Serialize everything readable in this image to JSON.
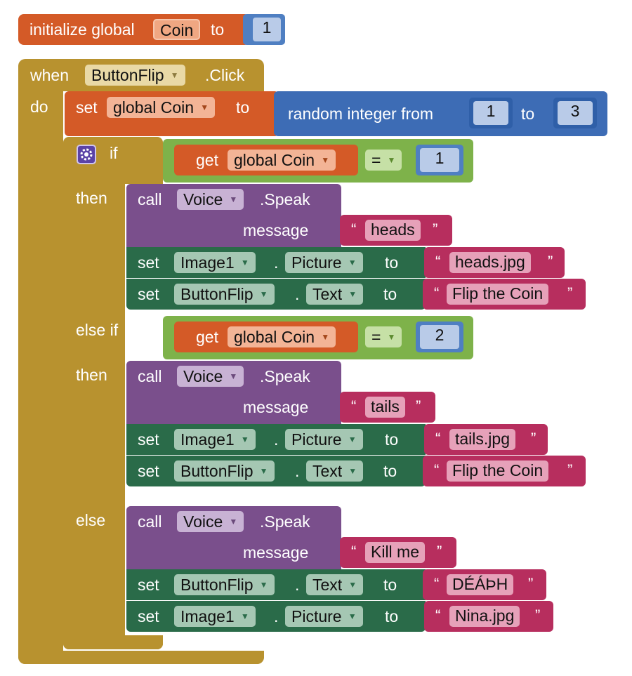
{
  "colors": {
    "init": "#d45a27",
    "event": "#b8922f",
    "set_var": "#d45a27",
    "math": "#3d6cb5",
    "control": "#7eb24a",
    "procedure": "#7a4f8c",
    "component_set": "#2a6b49",
    "text": "#b72e5e"
  },
  "init_block": {
    "label_initialize": "initialize global",
    "var_name": "Coin",
    "label_to": "to",
    "value": "1"
  },
  "event": {
    "label_when": "when",
    "component": "ButtonFlip",
    "label_event": ".Click",
    "label_do": "do",
    "set_var": {
      "label_set": "set",
      "var": "global Coin",
      "label_to": "to",
      "random": {
        "label": "random integer from",
        "from": "1",
        "label_to": "to",
        "to": "3"
      }
    },
    "if_block": {
      "label_if": "if",
      "label_then": "then",
      "label_elseif": "else if",
      "label_else": "else",
      "cond1": {
        "label_get": "get",
        "var": "global Coin",
        "op": "=",
        "value": "1"
      },
      "cond2": {
        "label_get": "get",
        "var": "global Coin",
        "op": "=",
        "value": "2"
      },
      "then1": {
        "speak": {
          "label_call": "call",
          "component": "Voice",
          "method": ".Speak",
          "label_message": "message",
          "message": "heads"
        },
        "set_a": {
          "label_set": "set",
          "component": "Image1",
          "property": "Picture",
          "label_to": "to",
          "value": "heads.jpg"
        },
        "set_b": {
          "label_set": "set",
          "component": "ButtonFlip",
          "property": "Text",
          "label_to": "to",
          "value": "Flip the Coin"
        }
      },
      "then2": {
        "speak": {
          "label_call": "call",
          "component": "Voice",
          "method": ".Speak",
          "label_message": "message",
          "message": "tails"
        },
        "set_a": {
          "label_set": "set",
          "component": "Image1",
          "property": "Picture",
          "label_to": "to",
          "value": "tails.jpg"
        },
        "set_b": {
          "label_set": "set",
          "component": "ButtonFlip",
          "property": "Text",
          "label_to": "to",
          "value": "Flip the Coin"
        }
      },
      "else": {
        "speak": {
          "label_call": "call",
          "component": "Voice",
          "method": ".Speak",
          "label_message": "message",
          "message": "Kill me"
        },
        "set_a": {
          "label_set": "set",
          "component": "ButtonFlip",
          "property": "Text",
          "label_to": "to",
          "value": "DÉÁÞH"
        },
        "set_b": {
          "label_set": "set",
          "component": "Image1",
          "property": "Picture",
          "label_to": "to",
          "value": "Nina.jpg"
        }
      }
    }
  },
  "glyphs": {
    "open_quote": "“",
    "close_quote": "”",
    "dropdown": "▼"
  }
}
